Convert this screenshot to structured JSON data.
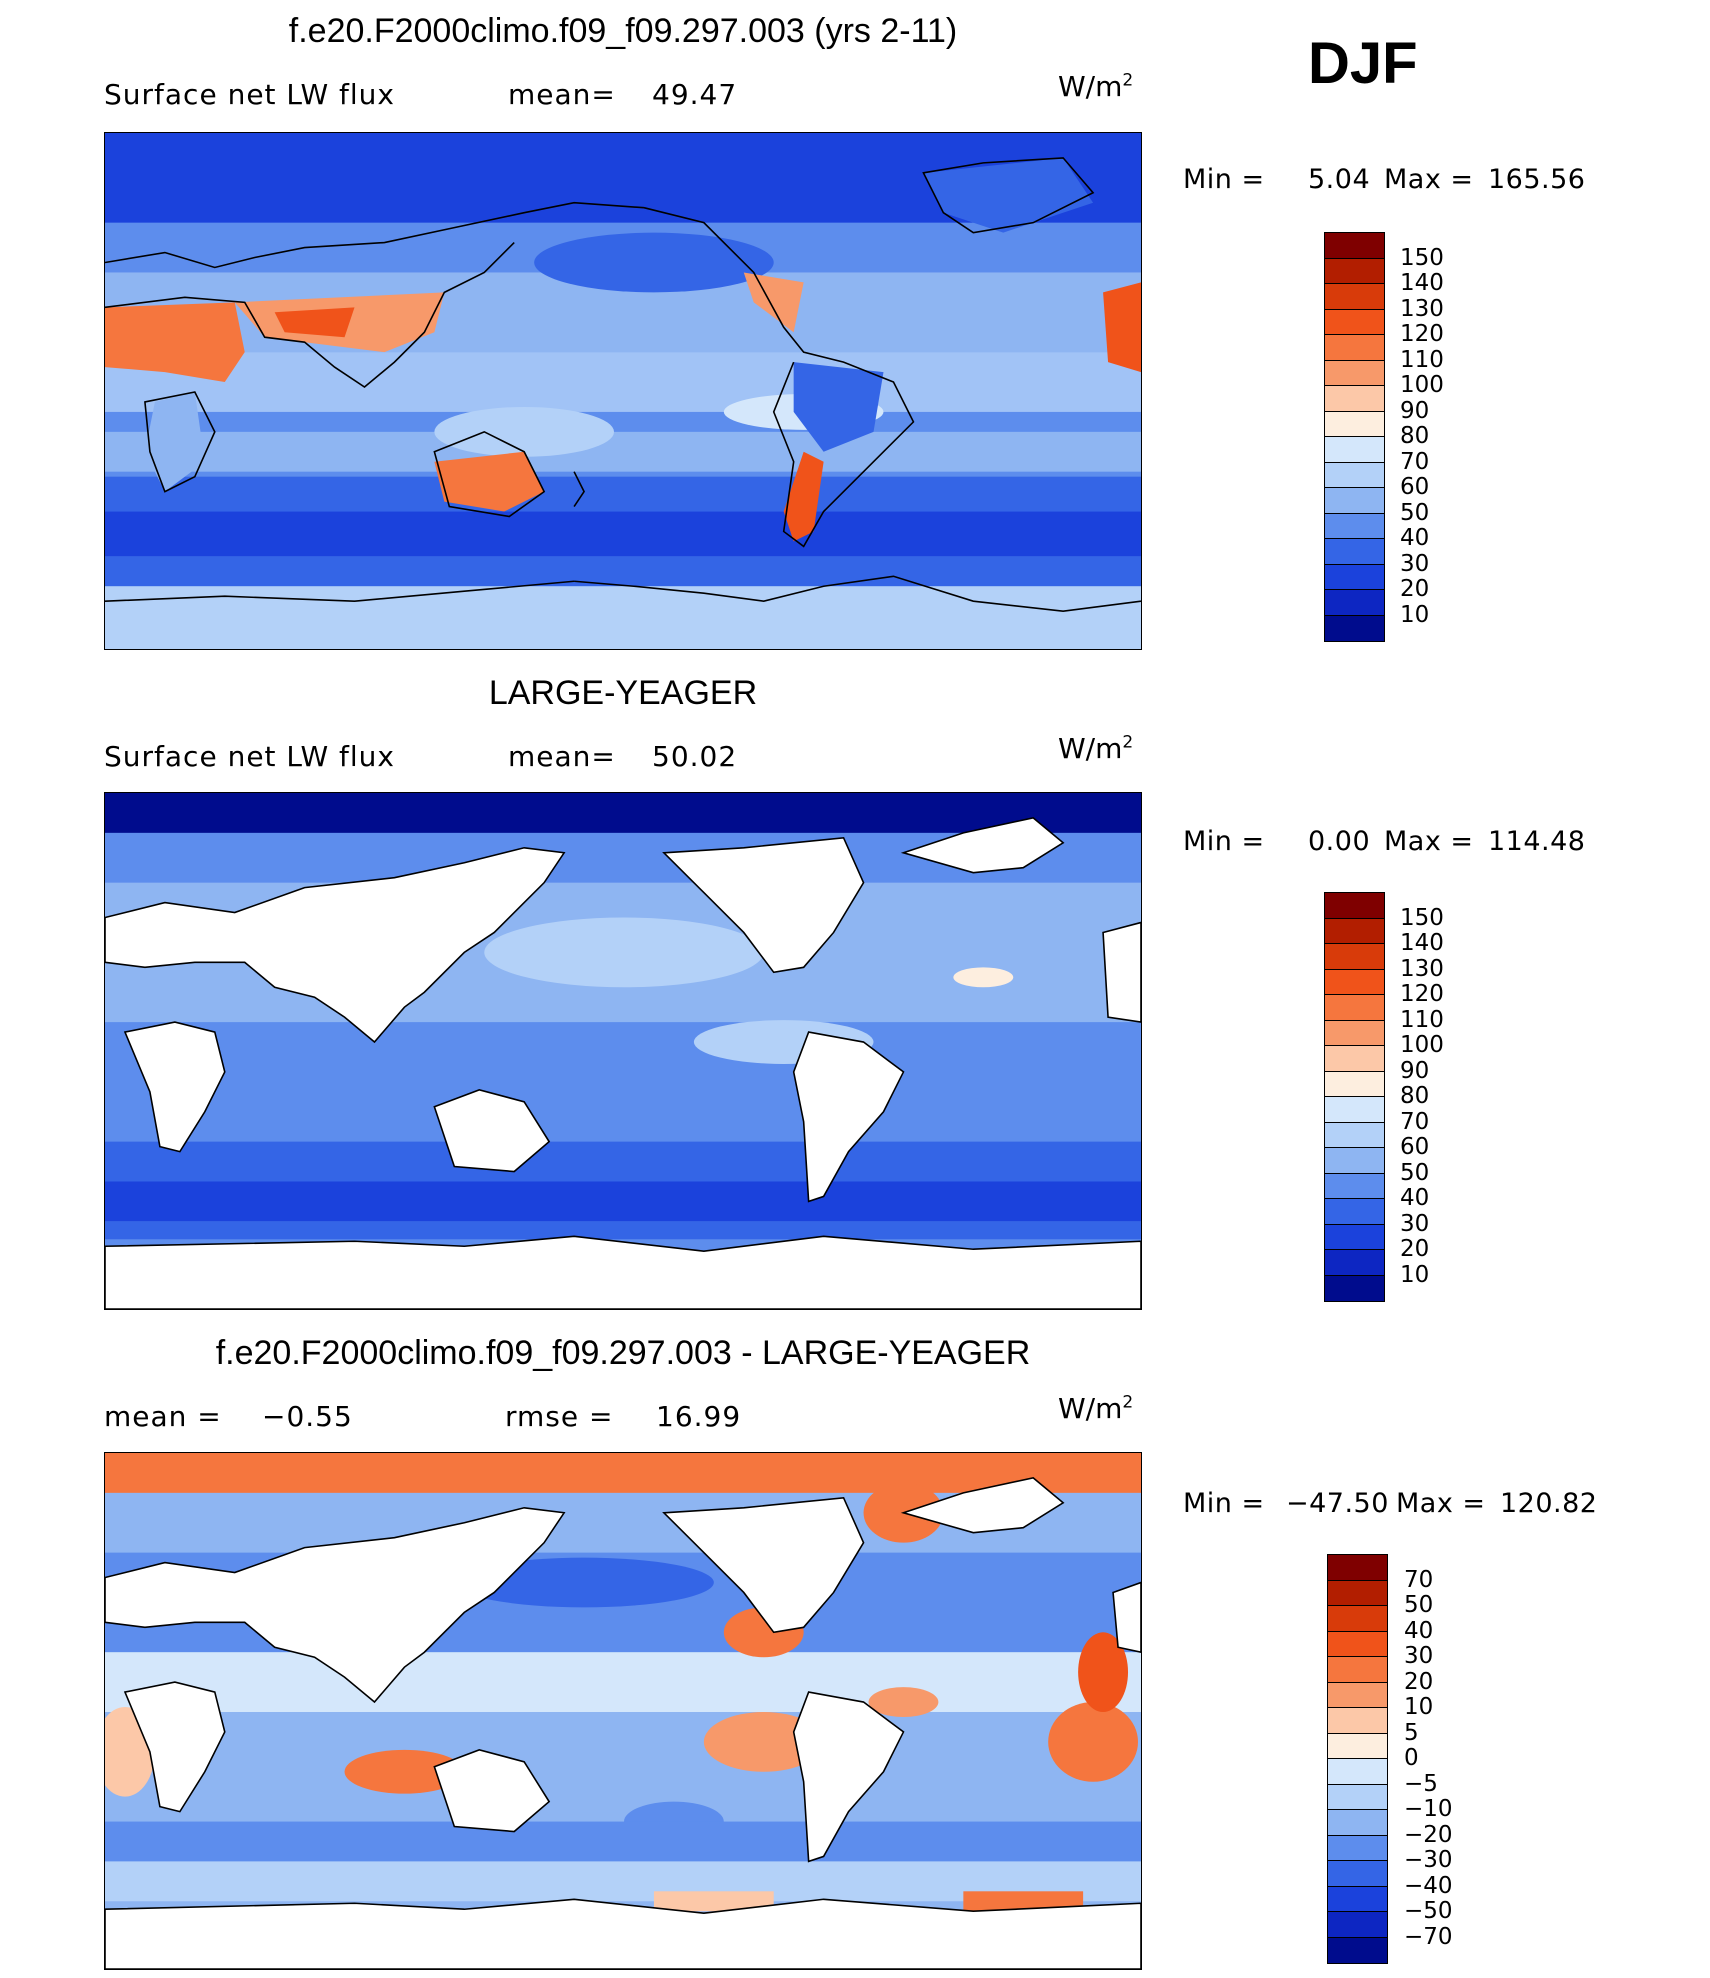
{
  "season": "DJF",
  "panels": [
    {
      "title": "f.e20.F2000climo.f09_f09.297.003 (yrs 2-11)",
      "left_label": "Surface net LW flux",
      "stat_label": "mean=",
      "stat_value": "49.47",
      "stat2_label": "",
      "stat2_value": "",
      "units": "W/m",
      "units_sup": "2",
      "min_label": "Min =",
      "min_value": "5.04",
      "max_label": "Max =",
      "max_value": "165.56",
      "land_masked": false,
      "colorbar": {
        "colors": [
          "#7f0000",
          "#b21e00",
          "#d83b0a",
          "#f0531a",
          "#f5763e",
          "#f7996a",
          "#fcc8a8",
          "#fdeedf",
          "#d4e7fb",
          "#b3d1f8",
          "#8eb5f2",
          "#5d8ded",
          "#3465e6",
          "#1b42dc",
          "#0d26c2",
          "#000c8d"
        ],
        "labels": [
          "150",
          "140",
          "130",
          "120",
          "110",
          "100",
          "90",
          "80",
          "70",
          "60",
          "50",
          "40",
          "30",
          "20",
          "10"
        ]
      }
    },
    {
      "title": "LARGE-YEAGER",
      "left_label": "Surface net LW flux",
      "stat_label": "mean=",
      "stat_value": "50.02",
      "stat2_label": "",
      "stat2_value": "",
      "units": "W/m",
      "units_sup": "2",
      "min_label": "Min =",
      "min_value": "0.00",
      "max_label": "Max =",
      "max_value": "114.48",
      "land_masked": true,
      "colorbar": {
        "colors": [
          "#7f0000",
          "#b21e00",
          "#d83b0a",
          "#f0531a",
          "#f5763e",
          "#f7996a",
          "#fcc8a8",
          "#fdeedf",
          "#d4e7fb",
          "#b3d1f8",
          "#8eb5f2",
          "#5d8ded",
          "#3465e6",
          "#1b42dc",
          "#0d26c2",
          "#000c8d"
        ],
        "labels": [
          "150",
          "140",
          "130",
          "120",
          "110",
          "100",
          "90",
          "80",
          "70",
          "60",
          "50",
          "40",
          "30",
          "20",
          "10"
        ]
      }
    },
    {
      "title": "f.e20.F2000climo.f09_f09.297.003 - LARGE-YEAGER",
      "left_label": "mean =",
      "stat_label": "",
      "stat_value": "−0.55",
      "stat2_label": "rmse =",
      "stat2_value": "16.99",
      "units": "W/m",
      "units_sup": "2",
      "min_label": "Min =",
      "min_value": "−47.50",
      "max_label": "Max =",
      "max_value": "120.82",
      "land_masked": true,
      "colorbar": {
        "colors": [
          "#7f0000",
          "#b21e00",
          "#d83b0a",
          "#f0531a",
          "#f5763e",
          "#f7996a",
          "#fcc8a8",
          "#fdeedf",
          "#d4e7fb",
          "#b3d1f8",
          "#8eb5f2",
          "#5d8ded",
          "#3465e6",
          "#1b42dc",
          "#0d26c2",
          "#000c8d"
        ],
        "labels": [
          "70",
          "50",
          "40",
          "30",
          "20",
          "10",
          "5",
          "0",
          "−5",
          "−10",
          "−20",
          "−30",
          "−40",
          "−50",
          "−70"
        ]
      }
    }
  ],
  "colors": {
    "ocean_deep_blue": "#1b42dc",
    "ocean_mid_blue": "#5d8ded",
    "ocean_light_blue": "#b3d1f8",
    "warm_orange": "#f5763e",
    "land_white": "#ffffff"
  }
}
